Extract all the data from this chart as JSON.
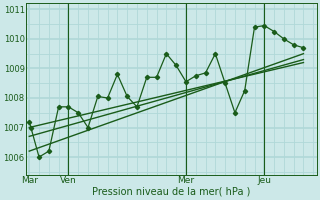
{
  "xlabel": "Pression niveau de la mer( hPa )",
  "bg_color": "#cce8e8",
  "plot_bg_color": "#cce8e8",
  "grid_color": "#b0d8d8",
  "line_color": "#1a5c1a",
  "x_ticks_labels": [
    "Mar",
    "Ven",
    "Mer",
    "Jeu"
  ],
  "x_ticks_pos": [
    0,
    12,
    48,
    72
  ],
  "xlim": [
    -1,
    88
  ],
  "ylim": [
    1005.4,
    1011.2
  ],
  "yticks": [
    1006,
    1007,
    1008,
    1009,
    1010,
    1011
  ],
  "series_x": [
    0,
    0.5,
    3,
    6,
    9,
    12,
    15,
    18,
    21,
    24,
    27,
    30,
    33,
    36,
    39,
    42,
    45,
    48,
    51,
    54,
    57,
    60,
    63,
    66,
    69,
    72,
    75,
    78,
    81,
    84
  ],
  "series_y": [
    1007.2,
    1007.0,
    1006.0,
    1006.2,
    1007.7,
    1007.7,
    1007.5,
    1007.0,
    1008.05,
    1008.0,
    1008.8,
    1008.05,
    1007.7,
    1008.7,
    1008.7,
    1009.5,
    1009.1,
    1008.55,
    1008.75,
    1008.85,
    1009.5,
    1008.5,
    1007.5,
    1008.25,
    1010.4,
    1010.45,
    1010.25,
    1010.0,
    1009.8,
    1009.7
  ],
  "trend1_x": [
    0,
    84
  ],
  "trend1_y": [
    1007.0,
    1009.2
  ],
  "trend2_x": [
    0,
    84
  ],
  "trend2_y": [
    1006.2,
    1009.5
  ],
  "trend3_x": [
    0,
    84
  ],
  "trend3_y": [
    1006.7,
    1009.3
  ],
  "vlines": [
    12,
    48,
    72
  ],
  "grid_minor_x": 3,
  "grid_major_x": 12
}
